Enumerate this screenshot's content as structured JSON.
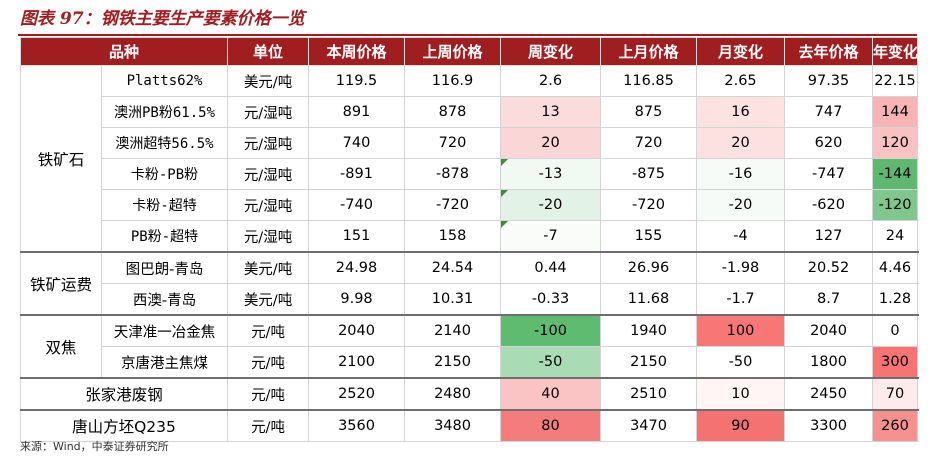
{
  "title": "图表 97：钢铁主要生产要素价格一览",
  "headers": [
    "品种",
    "单位",
    "本周价格",
    "上周价格",
    "周变化",
    "上月价格",
    "月变化",
    "去年价格",
    "年变化"
  ],
  "rows": [
    {
      "category": "铁矿石",
      "name": "Platts62%",
      "unit": "美元/吨",
      "this_week": "119.5",
      "last_week": "116.9",
      "wow": "2.6",
      "last_month": "116.85",
      "mom": "2.65",
      "last_year": "97.35",
      "yoy": "22.15"
    },
    {
      "category": "",
      "name": "澳洲PB粉61.5%",
      "unit": "元/湿吨",
      "this_week": "891",
      "last_week": "878",
      "wow": "13",
      "last_month": "875",
      "mom": "16",
      "last_year": "747",
      "yoy": "144"
    },
    {
      "category": "",
      "name": "澳洲超特56.5%",
      "unit": "元/湿吨",
      "this_week": "740",
      "last_week": "720",
      "wow": "20",
      "last_month": "720",
      "mom": "20",
      "last_year": "620",
      "yoy": "120"
    },
    {
      "category": "",
      "name": "卡粉-PB粉",
      "unit": "元/湿吨",
      "this_week": "-891",
      "last_week": "-878",
      "wow": "-13",
      "last_month": "-875",
      "mom": "-16",
      "last_year": "-747",
      "yoy": "-144"
    },
    {
      "category": "",
      "name": "卡粉-超特",
      "unit": "元/湿吨",
      "this_week": "-740",
      "last_week": "-720",
      "wow": "-20",
      "last_month": "-720",
      "mom": "-20",
      "last_year": "-620",
      "yoy": "-120"
    },
    {
      "category": "",
      "name": "PB粉-超特",
      "unit": "元/湿吨",
      "this_week": "151",
      "last_week": "158",
      "wow": "-7",
      "last_month": "155",
      "mom": "-4",
      "last_year": "127",
      "yoy": "24"
    },
    {
      "category": "铁矿运费",
      "name": "图巴朗-青岛",
      "unit": "美元/吨",
      "this_week": "24.98",
      "last_week": "24.54",
      "wow": "0.44",
      "last_month": "26.96",
      "mom": "-1.98",
      "last_year": "20.52",
      "yoy": "4.46"
    },
    {
      "category": "",
      "name": "西澳-青岛",
      "unit": "美元/吨",
      "this_week": "9.98",
      "last_week": "10.31",
      "wow": "-0.33",
      "last_month": "11.68",
      "mom": "-1.7",
      "last_year": "8.7",
      "yoy": "1.28"
    },
    {
      "category": "双焦",
      "name": "天津准一冶金焦",
      "unit": "元/吨",
      "this_week": "2040",
      "last_week": "2140",
      "wow": "-100",
      "last_month": "1940",
      "mom": "100",
      "last_year": "2040",
      "yoy": "0"
    },
    {
      "category": "",
      "name": "京唐港主焦煤",
      "unit": "元/吨",
      "this_week": "2100",
      "last_week": "2150",
      "wow": "-50",
      "last_month": "2150",
      "mom": "-50",
      "last_year": "1800",
      "yoy": "300"
    },
    {
      "category": "张家港废钢",
      "name": "",
      "unit": "元/吨",
      "this_week": "2520",
      "last_week": "2480",
      "wow": "40",
      "last_month": "2510",
      "mom": "10",
      "last_year": "2450",
      "yoy": "70"
    },
    {
      "category": "唐山方坯Q235",
      "name": "",
      "unit": "元/吨",
      "this_week": "3560",
      "last_week": "3480",
      "wow": "80",
      "last_month": "3470",
      "mom": "90",
      "last_year": "3300",
      "yoy": "260"
    }
  ],
  "colors": {
    "header_bg": "#a01d20",
    "wow": [
      "#ffffff",
      "#fbdcdc",
      "#fbd6d6",
      "#f1f9f3",
      "#e2f2e6",
      "#f9fcf9",
      "#ffffff",
      "#ffffff",
      "#5fbb6f",
      "#a9dcb4",
      "#fbc4c4",
      "#f47c7c"
    ],
    "mom": [
      "#ffffff",
      "#fde2e2",
      "#fde0e0",
      "#f6fbf7",
      "#f6fbf7",
      "#ffffff",
      "#ffffff",
      "#ffffff",
      "#f87676",
      "#ffffff",
      "#fff5f5",
      "#f47272"
    ],
    "yoy": [
      "#ffffff",
      "#f8b4b4",
      "#f9c1c1",
      "#5fb86f",
      "#7fc78c",
      "#ffffff",
      "#ffffff",
      "#ffffff",
      "#ffffff",
      "#f87474",
      "#fdeaea",
      "#f89090"
    ]
  },
  "source": "来源：Wind，中泰证券研究所"
}
